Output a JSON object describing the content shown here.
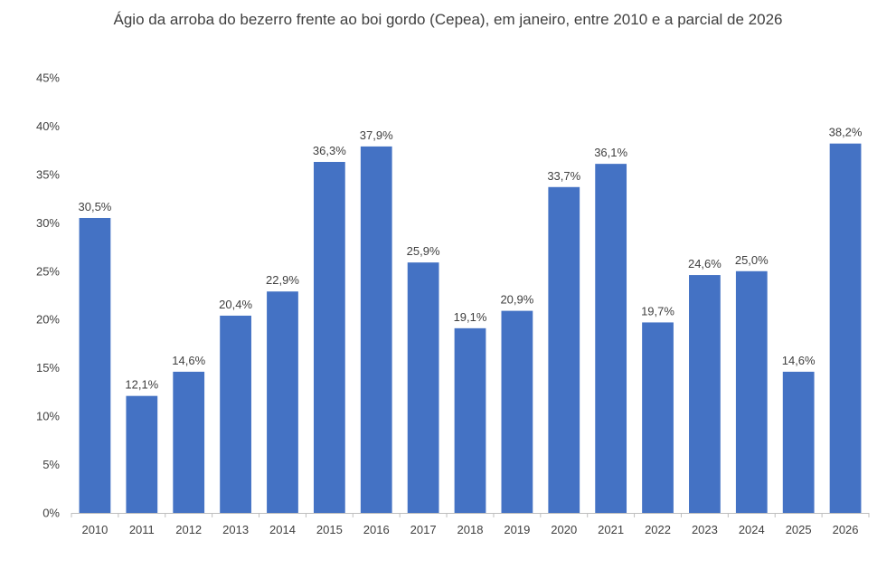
{
  "chart_data": {
    "type": "bar",
    "title": "Ágio da arroba do bezerro frente ao boi gordo (Cepea), em janeiro, entre 2010 e a parcial de 2026",
    "xlabel": "",
    "ylabel": "",
    "ylim": [
      0,
      45
    ],
    "yticks": [
      0,
      5,
      10,
      15,
      20,
      25,
      30,
      35,
      40,
      45
    ],
    "ytick_labels": [
      "0%",
      "5%",
      "10%",
      "15%",
      "20%",
      "25%",
      "30%",
      "35%",
      "40%",
      "45%"
    ],
    "categories": [
      "2010",
      "2011",
      "2012",
      "2013",
      "2014",
      "2015",
      "2016",
      "2017",
      "2018",
      "2019",
      "2020",
      "2021",
      "2022",
      "2023",
      "2024",
      "2025",
      "2026"
    ],
    "values": [
      30.5,
      12.1,
      14.6,
      20.4,
      22.9,
      36.3,
      37.9,
      25.9,
      19.1,
      20.9,
      33.7,
      36.1,
      19.7,
      24.6,
      25.0,
      14.6,
      38.2
    ],
    "value_labels": [
      "30,5%",
      "12,1%",
      "14,6%",
      "20,4%",
      "22,9%",
      "36,3%",
      "37,9%",
      "25,9%",
      "19,1%",
      "20,9%",
      "33,7%",
      "36,1%",
      "19,7%",
      "24,6%",
      "25,0%",
      "14,6%",
      "38,2%"
    ],
    "bar_color": "#4472C4",
    "grid": false,
    "legend": "none"
  }
}
